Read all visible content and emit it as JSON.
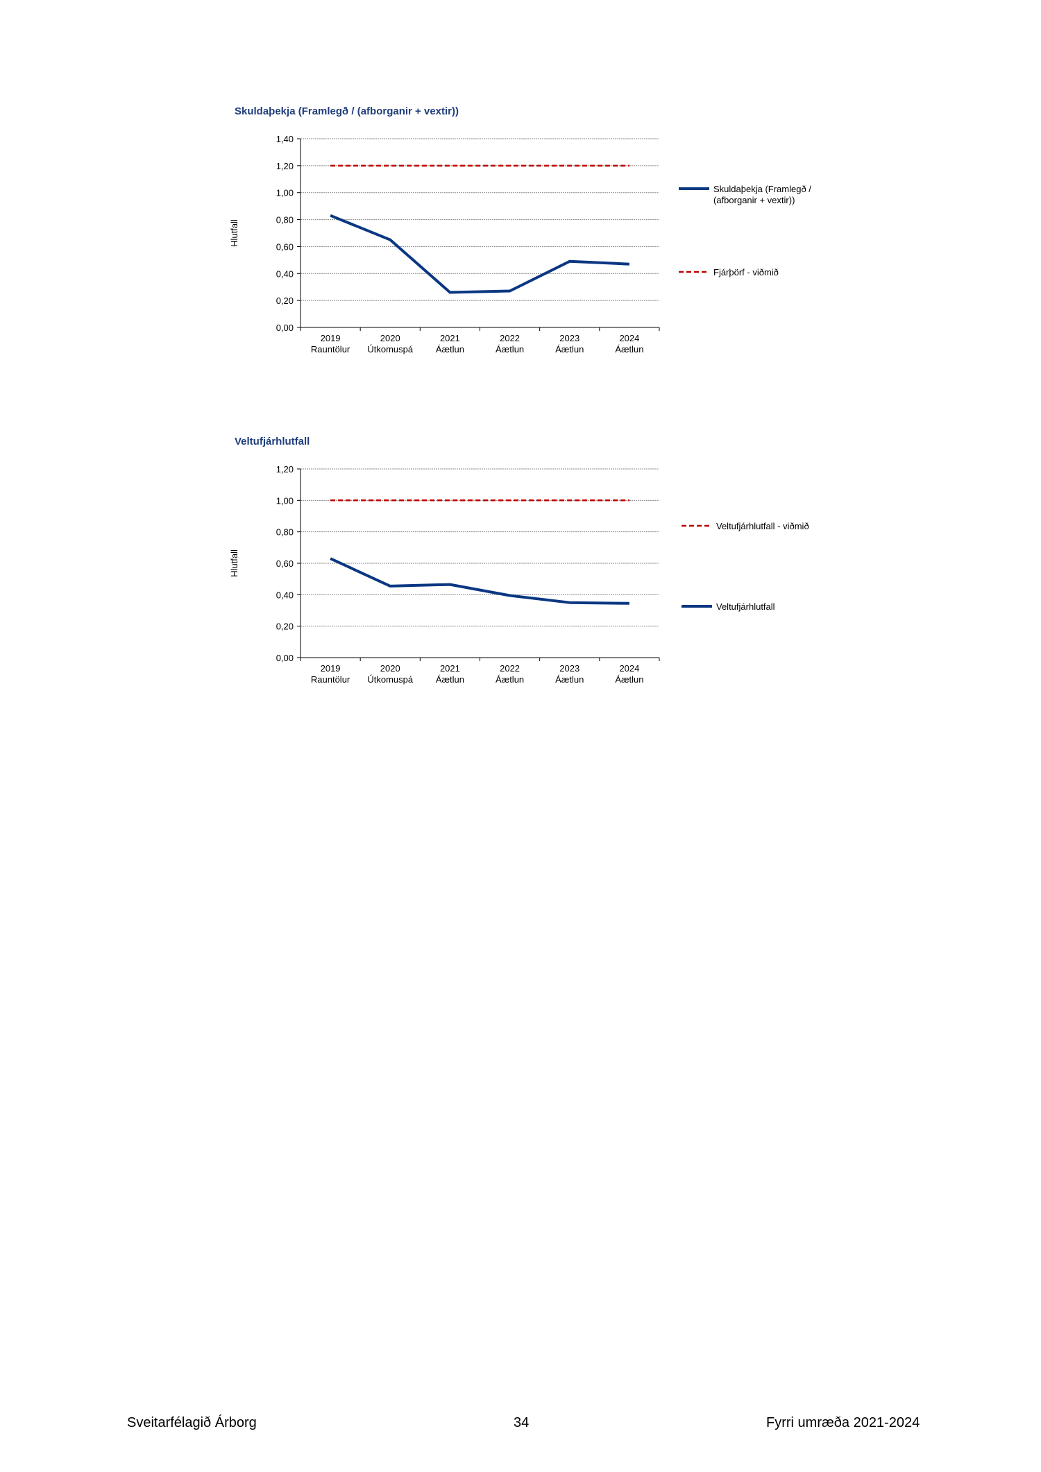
{
  "chart_data": [
    {
      "type": "line",
      "title": "Skuldaþekja (Framlegð / (afborganir + vextir))",
      "ylabel": "Hlutfall",
      "ylim": [
        0,
        1.4
      ],
      "ytick_step": 0.2,
      "categories": [
        [
          "2019",
          "Rauntölur"
        ],
        [
          "2020",
          "Útkomuspá"
        ],
        [
          "2021",
          "Áætlun"
        ],
        [
          "2022",
          "Áætlun"
        ],
        [
          "2023",
          "Áætlun"
        ],
        [
          "2024",
          "Áætlun"
        ]
      ],
      "grid": true,
      "legend": "right",
      "series": [
        {
          "name": [
            "Skuldaþekja (Framlegð /",
            "(afborganir + vextir))"
          ],
          "values": [
            0.83,
            0.65,
            0.26,
            0.27,
            0.49,
            0.47
          ],
          "style": "solid",
          "color": "#0b3782"
        },
        {
          "name": [
            "Fjárþörf - viðmið"
          ],
          "values": [
            1.2,
            1.2,
            1.2,
            1.2,
            1.2,
            1.2
          ],
          "style": "dashed",
          "color": "#c00000"
        }
      ]
    },
    {
      "type": "line",
      "title": "Veltufjárhlutfall",
      "ylabel": "Hlutfall",
      "ylim": [
        0,
        1.2
      ],
      "ytick_step": 0.2,
      "categories": [
        [
          "2019",
          "Rauntölur"
        ],
        [
          "2020",
          "Útkomuspá"
        ],
        [
          "2021",
          "Áætlun"
        ],
        [
          "2022",
          "Áætlun"
        ],
        [
          "2023",
          "Áætlun"
        ],
        [
          "2024",
          "Áætlun"
        ]
      ],
      "grid": true,
      "legend": "right",
      "series": [
        {
          "name": [
            "Veltufjárhlutfall - viðmið"
          ],
          "values": [
            1.0,
            1.0,
            1.0,
            1.0,
            1.0,
            1.0
          ],
          "style": "dashed",
          "color": "#c00000"
        },
        {
          "name": [
            "Veltufjárhlutfall"
          ],
          "values": [
            0.63,
            0.455,
            0.465,
            0.395,
            0.35,
            0.345
          ],
          "style": "solid",
          "color": "#0b3782"
        }
      ]
    }
  ],
  "footer": {
    "left": "Sveitarfélagið Árborg",
    "center": "34",
    "right": "Fyrri umræða 2021-2024"
  }
}
